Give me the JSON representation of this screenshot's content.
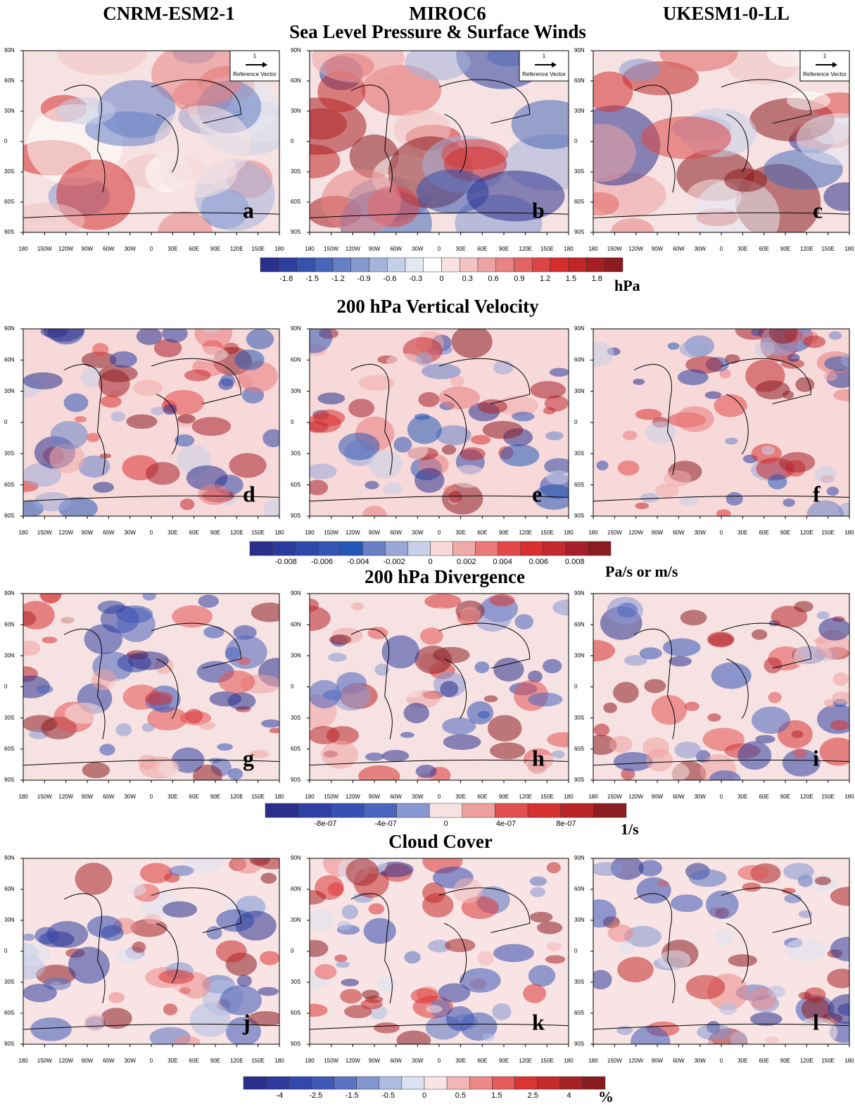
{
  "columns": [
    "CNRM-ESM2-1",
    "MIROC6",
    "UKESM1-0-LL"
  ],
  "lat_labels": [
    "90N",
    "60N",
    "30N",
    "0",
    "30S",
    "60S",
    "90S"
  ],
  "lon_labels": [
    "180",
    "150W",
    "120W",
    "90W",
    "60W",
    "30W",
    "0",
    "30E",
    "60E",
    "90E",
    "120E",
    "150E",
    "180"
  ],
  "reference_vector": {
    "magnitude": "1",
    "label": "Reference Vector"
  },
  "sections": [
    {
      "title": "Sea Level Pressure & Surface Winds",
      "panels": [
        "a",
        "b",
        "c"
      ],
      "colorbar": {
        "unit": "hPa",
        "labels": [
          "-1.8",
          "-1.5",
          "-1.2",
          "-0.9",
          "-0.6",
          "-0.3",
          "0",
          "0.3",
          "0.6",
          "0.9",
          "1.2",
          "1.5",
          "1.8"
        ],
        "colors": [
          "#2b2f8c",
          "#2c3f9f",
          "#3552ad",
          "#4867b8",
          "#6580c4",
          "#8499cf",
          "#a5b3db",
          "#c6cfe8",
          "#e4e8f3",
          "#ffffff",
          "#f6e2e2",
          "#f1c3c3",
          "#eca3a3",
          "#e78383",
          "#e26464",
          "#dc4545",
          "#d42e2e",
          "#c02626",
          "#a51f22",
          "#8a1b1f"
        ]
      }
    },
    {
      "title": "200 hPa Vertical Velocity",
      "panels": [
        "d",
        "e",
        "f"
      ],
      "colorbar": {
        "unit": "Pa/s or m/s",
        "labels": [
          "-0.008",
          "-0.006",
          "-0.004",
          "-0.002",
          "0",
          "0.002",
          "0.004",
          "0.006",
          "0.008"
        ],
        "colors": [
          "#2b2f8c",
          "#2c3a9b",
          "#2f47a8",
          "#3255b3",
          "#2457b5",
          "#6a7fc6",
          "#9aa8d8",
          "#c9d0ea",
          "#f7d9d9",
          "#f1aaaa",
          "#ea7a7a",
          "#e44848",
          "#d92f2f",
          "#c22a2f",
          "#a5202c",
          "#8a1c22"
        ]
      }
    },
    {
      "title": "200 hPa Divergence",
      "panels": [
        "g",
        "h",
        "i"
      ],
      "colorbar": {
        "unit": "1/s",
        "labels": [
          "-8e-07",
          "-4e-07",
          "0",
          "4e-07",
          "8e-07"
        ],
        "colors": [
          "#2b2f8c",
          "#2f3fa2",
          "#3552b2",
          "#4b65bd",
          "#8a98d2",
          "#f6e2e2",
          "#eea0a0",
          "#e35050",
          "#d73232",
          "#b82529",
          "#8c1d21"
        ]
      }
    },
    {
      "title": "Cloud Cover",
      "panels": [
        "j",
        "k",
        "l"
      ],
      "colorbar": {
        "unit": "%",
        "labels": [
          "-4",
          "-2.5",
          "-1.5",
          "-0.5",
          "0",
          "0.5",
          "1.5",
          "2.5",
          "4"
        ],
        "colors": [
          "#2b2f8c",
          "#2f3a9d",
          "#3348ab",
          "#3e58b6",
          "#5a72c1",
          "#8396d0",
          "#b0bde2",
          "#dce2f1",
          "#f8e4e4",
          "#f2b6b6",
          "#ec8888",
          "#e55a5a",
          "#dc3434",
          "#c52a2a",
          "#a52124",
          "#8a1c20"
        ]
      }
    }
  ]
}
